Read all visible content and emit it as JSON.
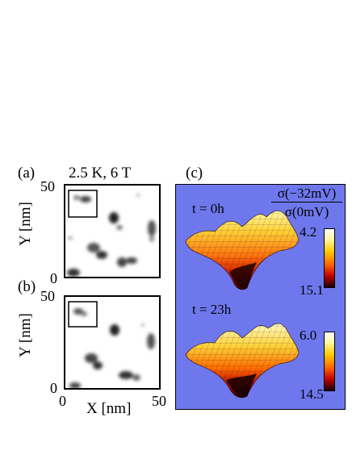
{
  "panel_a": {
    "label": "(a)",
    "condition": "2.5 K, 6 T",
    "y_axis_label": "Y [nm]",
    "y_ticks": [
      "50",
      "0"
    ]
  },
  "panel_b": {
    "label": "(b)",
    "y_axis_label": "Y [nm]",
    "y_ticks": [
      "50",
      "0"
    ],
    "x_axis_label": "X [nm]",
    "x_ticks": [
      "0",
      "50"
    ]
  },
  "panel_c": {
    "label": "(c)",
    "ratio_numerator": "σ(−32mV)",
    "ratio_denominator": "σ(0mV)",
    "top_surface": {
      "time": "t = 0h",
      "scale_max": "4.2",
      "scale_min": "15.1"
    },
    "bottom_surface": {
      "time": "t = 23h",
      "scale_max": "6.0",
      "scale_min": "14.5"
    }
  },
  "colors": {
    "background_c": "#6e78ec",
    "surface_dark": "#1a0000",
    "surface_bright": "#fff6a0"
  }
}
